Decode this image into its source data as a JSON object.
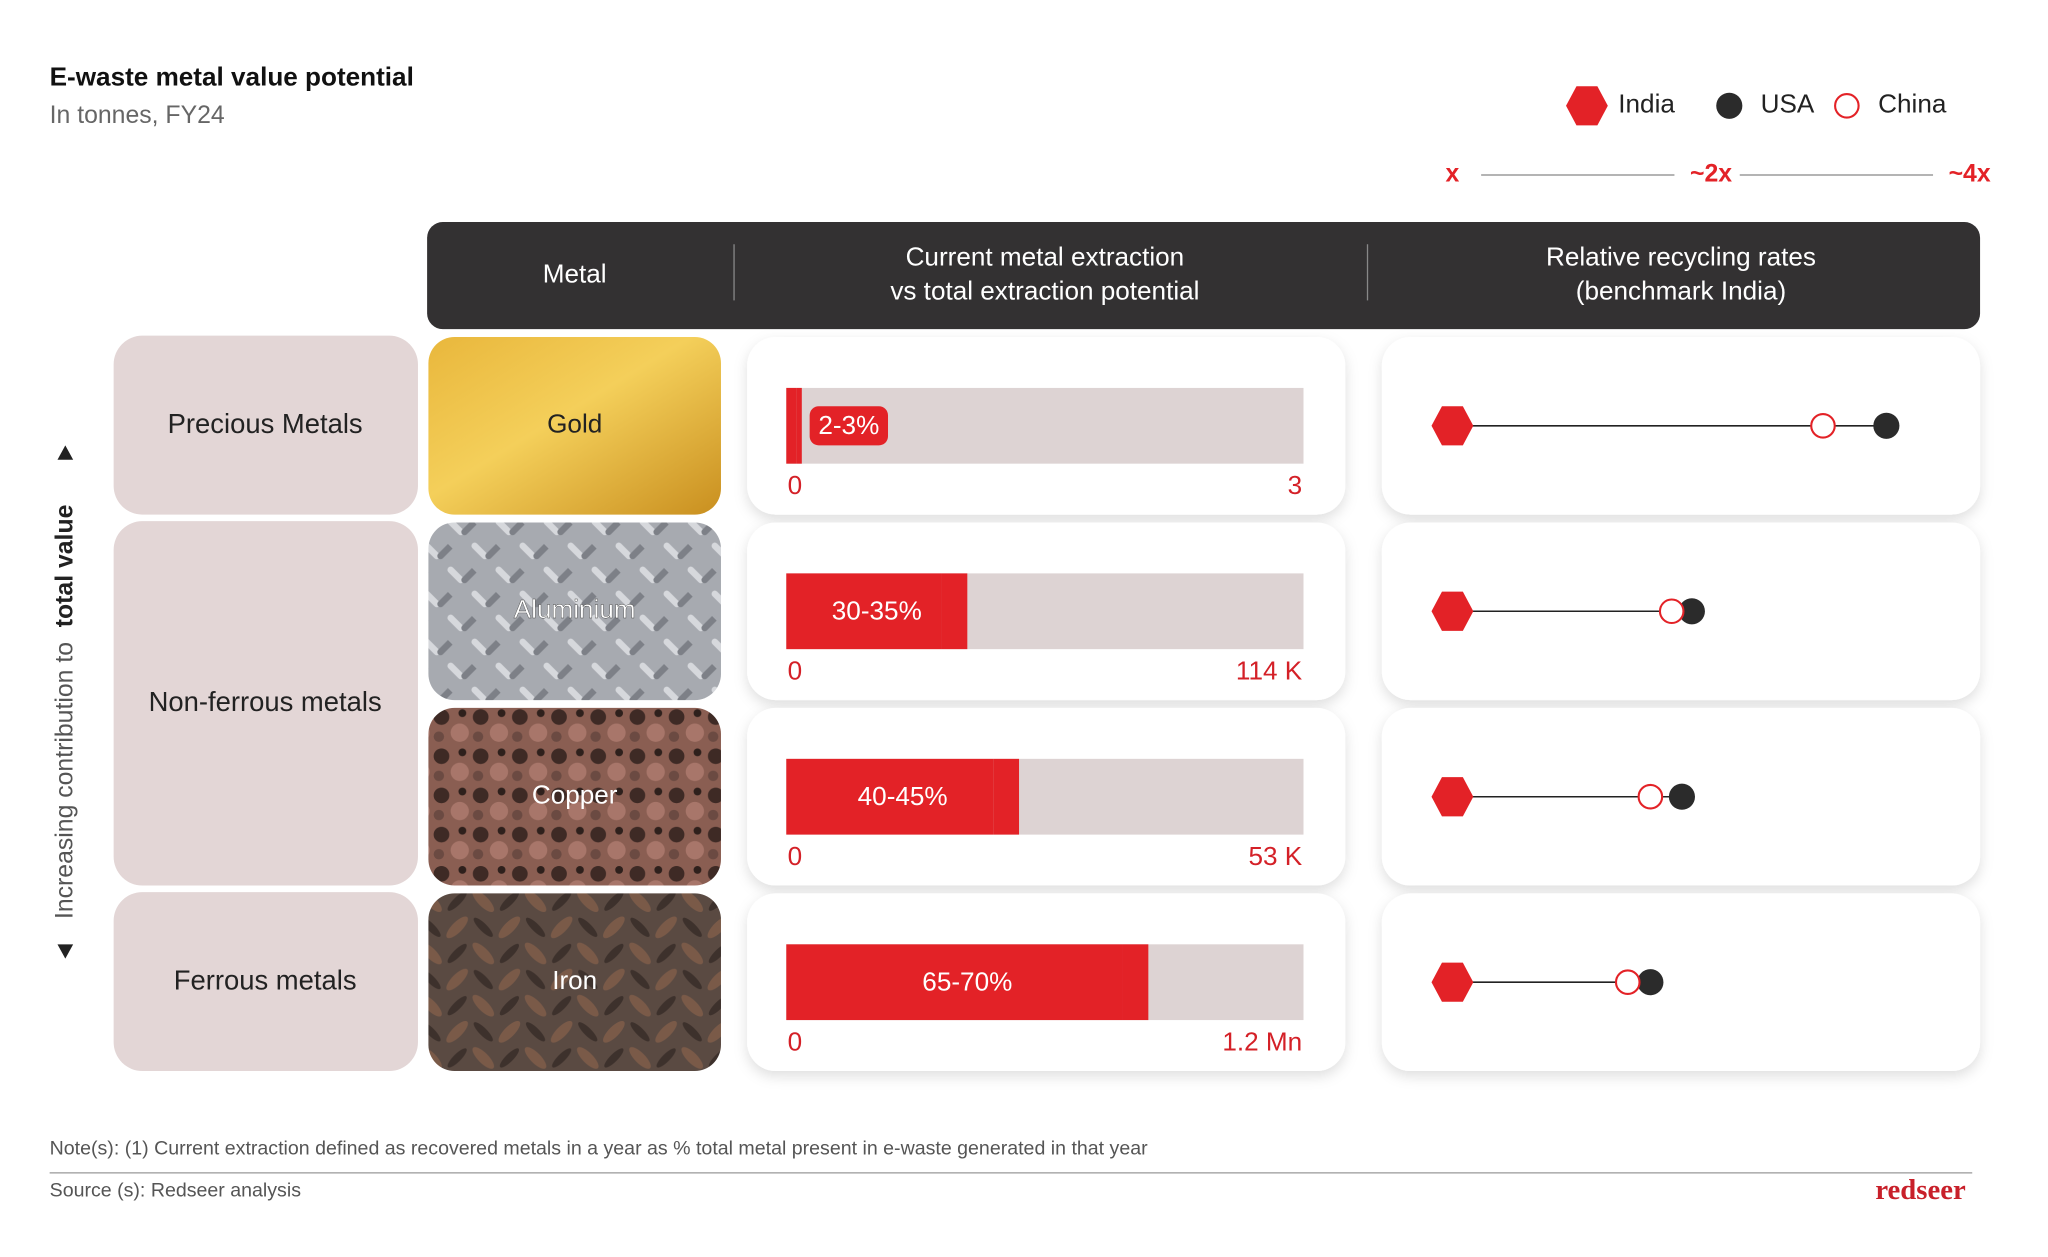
{
  "header": {
    "title": "E-waste metal value potential",
    "subtitle": "In tonnes, FY24"
  },
  "legend": [
    {
      "name": "India",
      "color": "#e32227",
      "marker": "hexagon"
    },
    {
      "name": "USA",
      "color": "#2b2b2b",
      "marker": "dot"
    },
    {
      "name": "China",
      "color": "#e32227",
      "marker": "ring"
    }
  ],
  "scale": {
    "log": true,
    "xlim": [
      1,
      4
    ],
    "xticks": [
      {
        "value": 1,
        "label": "x"
      },
      {
        "value": 2,
        "label": "~2x"
      },
      {
        "value": 4,
        "label": "~4x"
      }
    ]
  },
  "columns": [
    {
      "lines": [
        "Metal"
      ]
    },
    {
      "lines": [
        "Current metal extraction",
        "vs total extraction potential"
      ]
    },
    {
      "lines": [
        "Relative recycling rates",
        "(benchmark India)"
      ]
    }
  ],
  "left_axis": {
    "text": "Increasing contribution to",
    "emphasis": "total value"
  },
  "bars": {
    "xlim": [
      0,
      100
    ],
    "color": "#e32227",
    "track_color": "#ddd3d3"
  },
  "groups": [
    {
      "name": "Precious Metals",
      "metals": [
        {
          "name": "Gold",
          "extraction": [
            2,
            3
          ],
          "extraction_label": "2-3%",
          "axis_start": 0,
          "total": 3,
          "rates": [
            1,
            3.2,
            2.7
          ]
        }
      ]
    },
    {
      "name": "Non-ferrous metals",
      "metals": [
        {
          "name": "Aluminium",
          "extraction": [
            30,
            35
          ],
          "extraction_label": "30-35%",
          "axis_start": 0,
          "total": {
            "value": 114000,
            "label": "114 K"
          },
          "rates": [
            1,
            1.9,
            1.8
          ]
        },
        {
          "name": "Copper",
          "extraction": [
            40,
            45
          ],
          "extraction_label": "40-45%",
          "axis_start": 0,
          "total": {
            "value": 53000,
            "label": "53 K"
          },
          "rates": [
            1,
            1.85,
            1.7
          ]
        }
      ]
    },
    {
      "name": "Ferrous metals",
      "metals": [
        {
          "name": "Iron",
          "extraction": [
            65,
            70
          ],
          "extraction_label": "65-70%",
          "axis_start": 0,
          "total": {
            "value": 1200000,
            "label": "1.2 Mn"
          },
          "rates": [
            1,
            1.7,
            1.6
          ]
        }
      ]
    }
  ],
  "footer": {
    "note": "Note(s): (1) Current extraction defined as recovered metals in a year as % total metal present in e-waste generated in that year",
    "source": "Source (s): Redseer analysis",
    "brand": "redseer"
  }
}
